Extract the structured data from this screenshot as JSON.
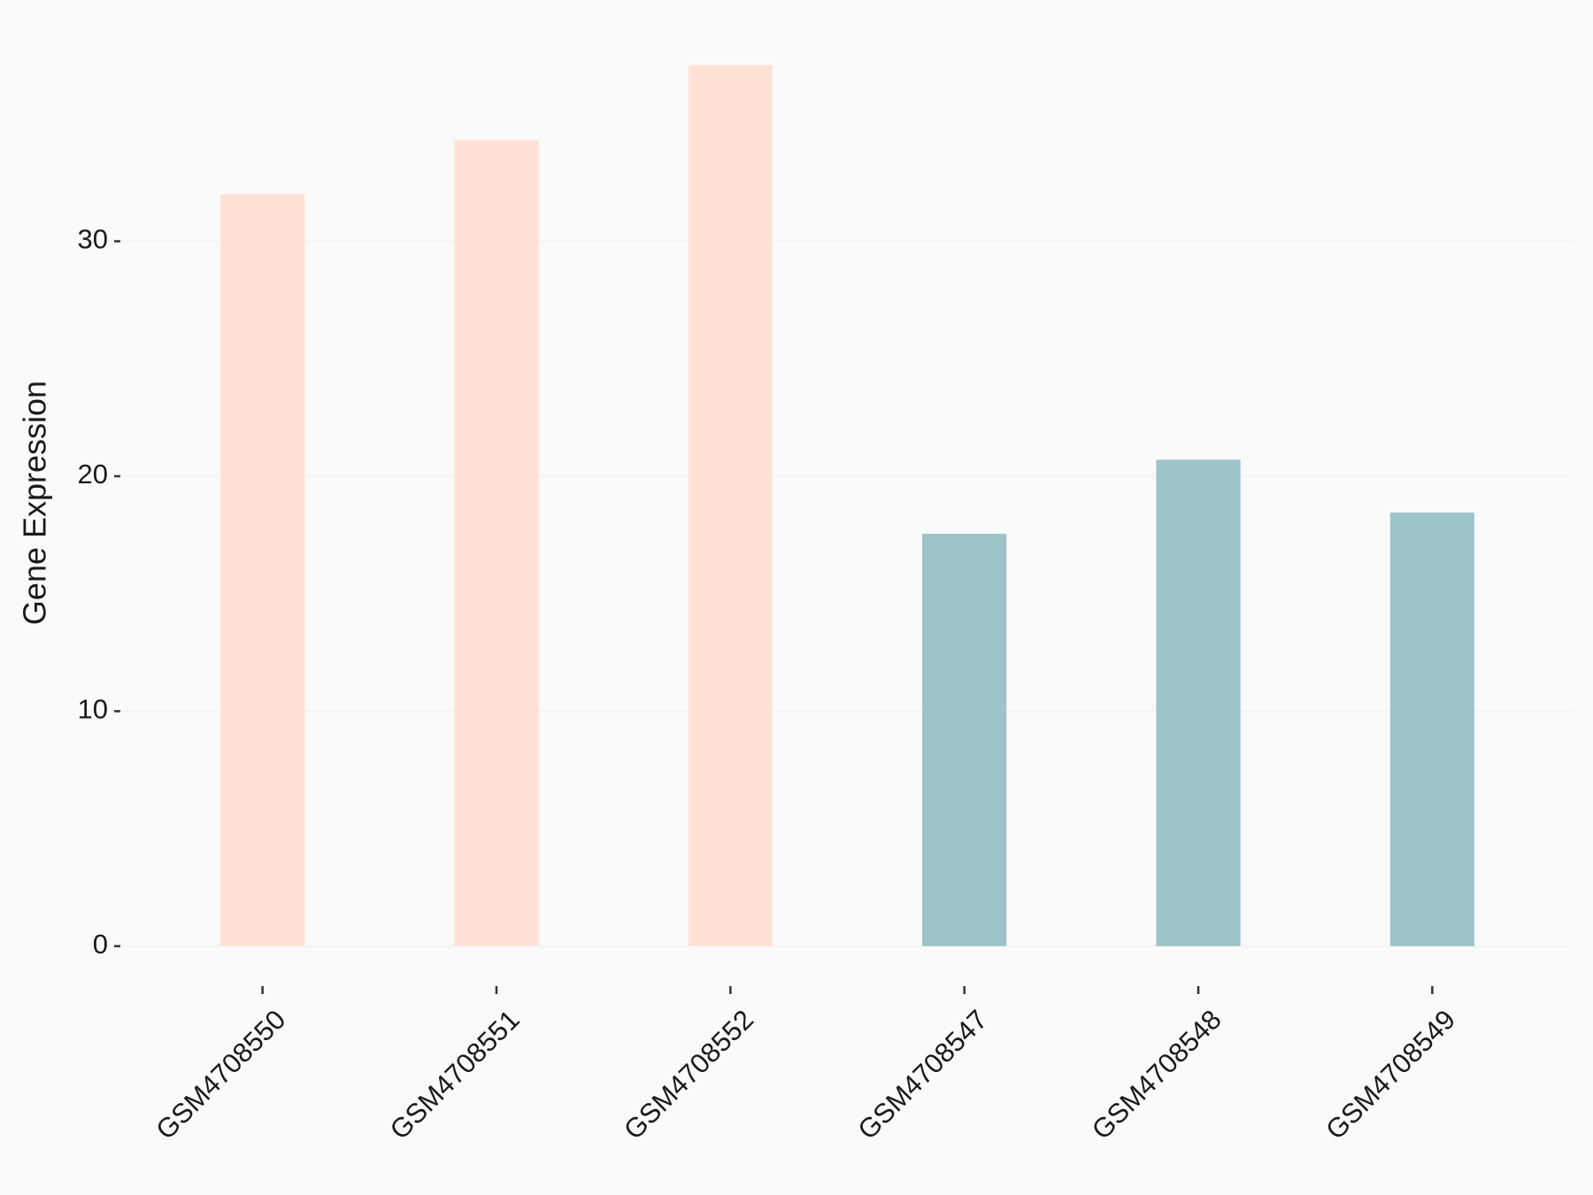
{
  "chart_data": {
    "type": "bar",
    "y_label": "Gene Expression",
    "categories": [
      "GSM4708550",
      "GSM4708551",
      "GSM4708552",
      "GSM4708547",
      "GSM4708548",
      "GSM4708549"
    ],
    "values": [
      32.0,
      34.3,
      37.5,
      17.55,
      20.7,
      18.45
    ],
    "colors": [
      "#ffe1d6",
      "#ffe1d6",
      "#ffe1d6",
      "#9dc4c8",
      "#9dc4c8",
      "#9dc4c8"
    ],
    "ylim": [
      -1.7,
      39.4
    ],
    "yticks": [
      0,
      10,
      20,
      30
    ],
    "grid": true
  }
}
